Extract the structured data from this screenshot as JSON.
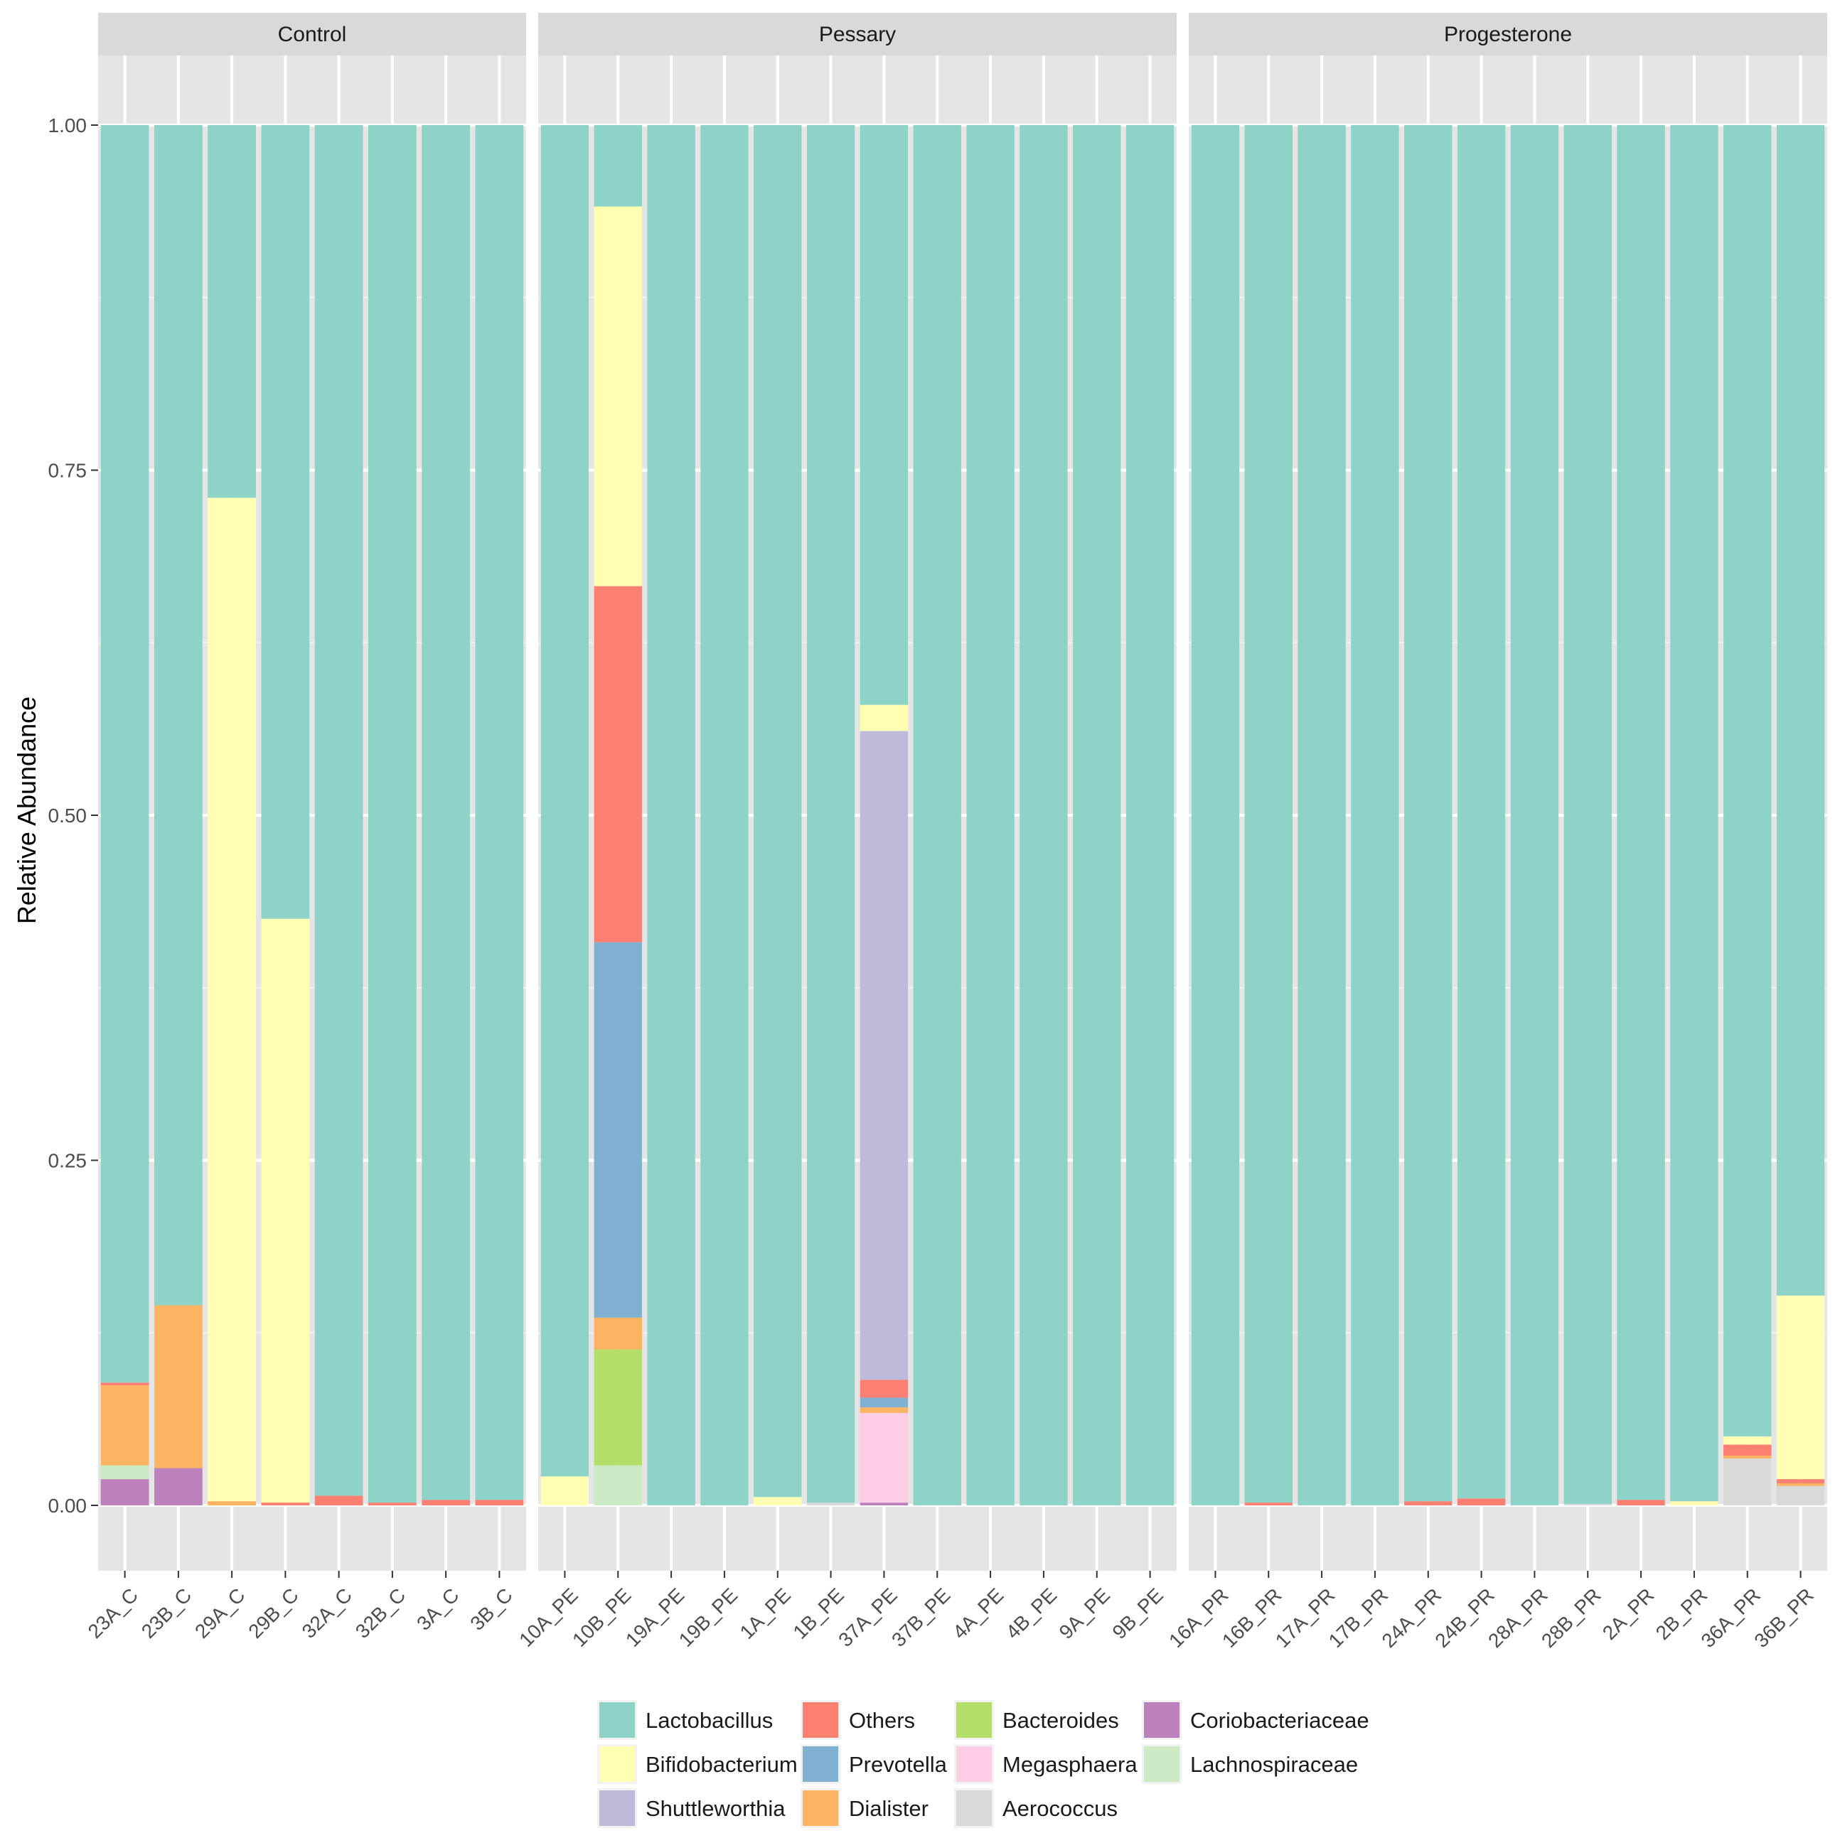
{
  "chart_data": {
    "type": "bar",
    "stacked": true,
    "ylabel": "Relative Abundance",
    "xlabel": "",
    "ylim": [
      -0.05,
      1.05
    ],
    "yticks": [
      "0.00",
      "0.25",
      "0.50",
      "0.75",
      "1.00"
    ],
    "ytick_values": [
      0,
      0.25,
      0.5,
      0.75,
      1.0
    ],
    "grid": true,
    "legend_position": "bottom",
    "genera": [
      {
        "name": "Lactobacillus",
        "color": "#8DD3C7"
      },
      {
        "name": "Bifidobacterium",
        "color": "#FFFFB3"
      },
      {
        "name": "Shuttleworthia",
        "color": "#BEBADA"
      },
      {
        "name": "Others",
        "color": "#FB8072"
      },
      {
        "name": "Prevotella",
        "color": "#80B1D3"
      },
      {
        "name": "Dialister",
        "color": "#FDB462"
      },
      {
        "name": "Bacteroides",
        "color": "#B3DE69"
      },
      {
        "name": "Megasphaera",
        "color": "#FCCDE5"
      },
      {
        "name": "Aerococcus",
        "color": "#D9D9D9"
      },
      {
        "name": "Coriobacteriaceae",
        "color": "#BC80BD"
      },
      {
        "name": "Lachnospiraceae",
        "color": "#CCEBC5"
      }
    ],
    "stack_order_bottom_to_top": [
      "Coriobacteriaceae",
      "Lachnospiraceae",
      "Aerococcus",
      "Megasphaera",
      "Bacteroides",
      "Dialister",
      "Prevotella",
      "Others",
      "Shuttleworthia",
      "Bifidobacterium",
      "Lactobacillus"
    ],
    "facets": [
      {
        "name": "Control",
        "samples": [
          {
            "id": "23A_C",
            "values": {
              "Lachnospiraceae": 0.01,
              "Coriobacteriaceae": 0.019,
              "Dialister": 0.058,
              "Others": 0.002,
              "Lactobacillus": 0.911
            }
          },
          {
            "id": "23B_C",
            "values": {
              "Coriobacteriaceae": 0.027,
              "Dialister": 0.118,
              "Lactobacillus": 0.855
            }
          },
          {
            "id": "29A_C",
            "values": {
              "Dialister": 0.003,
              "Bifidobacterium": 0.727,
              "Lactobacillus": 0.27
            }
          },
          {
            "id": "29B_C",
            "values": {
              "Others": 0.002,
              "Bifidobacterium": 0.423,
              "Lactobacillus": 0.575
            }
          },
          {
            "id": "32A_C",
            "values": {
              "Others": 0.007,
              "Lactobacillus": 0.993
            }
          },
          {
            "id": "32B_C",
            "values": {
              "Others": 0.002,
              "Lactobacillus": 0.998
            }
          },
          {
            "id": "3A_C",
            "values": {
              "Others": 0.004,
              "Lactobacillus": 0.996
            }
          },
          {
            "id": "3B_C",
            "values": {
              "Others": 0.004,
              "Lactobacillus": 0.996
            }
          }
        ]
      },
      {
        "name": "Pessary",
        "samples": [
          {
            "id": "10A_PE",
            "values": {
              "Bifidobacterium": 0.021,
              "Lactobacillus": 0.979
            }
          },
          {
            "id": "10B_PE",
            "values": {
              "Lachnospiraceae": 0.029,
              "Bacteroides": 0.084,
              "Dialister": 0.023,
              "Prevotella": 0.272,
              "Others": 0.258,
              "Bifidobacterium": 0.275,
              "Lactobacillus": 0.059
            }
          },
          {
            "id": "19A_PE",
            "values": {
              "Lactobacillus": 1.0
            }
          },
          {
            "id": "19B_PE",
            "values": {
              "Lactobacillus": 1.0
            }
          },
          {
            "id": "1A_PE",
            "values": {
              "Bifidobacterium": 0.006,
              "Lactobacillus": 0.994
            }
          },
          {
            "id": "1B_PE",
            "values": {
              "Aerococcus": 0.002,
              "Lactobacillus": 0.998
            }
          },
          {
            "id": "37A_PE",
            "values": {
              "Coriobacteriaceae": 0.002,
              "Megasphaera": 0.065,
              "Dialister": 0.004,
              "Prevotella": 0.007,
              "Others": 0.013,
              "Shuttleworthia": 0.47,
              "Bifidobacterium": 0.019,
              "Lactobacillus": 0.42
            }
          },
          {
            "id": "37B_PE",
            "values": {
              "Lactobacillus": 1.0
            }
          },
          {
            "id": "4A_PE",
            "values": {
              "Lactobacillus": 1.0
            }
          },
          {
            "id": "4B_PE",
            "values": {
              "Lactobacillus": 1.0
            }
          },
          {
            "id": "9A_PE",
            "values": {
              "Lactobacillus": 1.0
            }
          },
          {
            "id": "9B_PE",
            "values": {
              "Lactobacillus": 1.0
            }
          }
        ]
      },
      {
        "name": "Progesterone",
        "samples": [
          {
            "id": "16A_PR",
            "values": {
              "Lactobacillus": 1.0
            }
          },
          {
            "id": "16B_PR",
            "values": {
              "Others": 0.002,
              "Lactobacillus": 0.998
            }
          },
          {
            "id": "17A_PR",
            "values": {
              "Lactobacillus": 1.0
            }
          },
          {
            "id": "17B_PR",
            "values": {
              "Lactobacillus": 1.0
            }
          },
          {
            "id": "24A_PR",
            "values": {
              "Others": 0.003,
              "Lactobacillus": 0.997
            }
          },
          {
            "id": "24B_PR",
            "values": {
              "Others": 0.005,
              "Lactobacillus": 0.995
            }
          },
          {
            "id": "28A_PR",
            "values": {
              "Lactobacillus": 1.0
            }
          },
          {
            "id": "28B_PR",
            "values": {
              "Aerococcus": 0.001,
              "Lactobacillus": 0.999
            }
          },
          {
            "id": "2A_PR",
            "values": {
              "Others": 0.004,
              "Lactobacillus": 0.996
            }
          },
          {
            "id": "2B_PR",
            "values": {
              "Bifidobacterium": 0.003,
              "Lactobacillus": 0.997
            }
          },
          {
            "id": "36A_PR",
            "values": {
              "Aerococcus": 0.034,
              "Dialister": 0.002,
              "Others": 0.008,
              "Bifidobacterium": 0.006,
              "Lactobacillus": 0.95
            }
          },
          {
            "id": "36B_PR",
            "values": {
              "Aerococcus": 0.014,
              "Dialister": 0.002,
              "Others": 0.003,
              "Bifidobacterium": 0.133,
              "Lactobacillus": 0.848
            }
          }
        ]
      }
    ]
  }
}
